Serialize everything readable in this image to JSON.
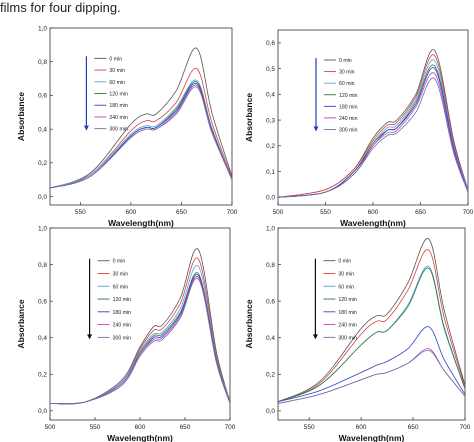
{
  "caption": "films for four dipping.",
  "legend_labels": [
    "0 min",
    "30 min",
    "60 min",
    "120 min",
    "180 min",
    "240 min",
    "300 min"
  ],
  "series_colors": [
    "#555555",
    "#d94040",
    "#5aa0e0",
    "#2a7a3a",
    "#3040c0",
    "#c040c0",
    "#7070a0"
  ],
  "chart_data": [
    {
      "type": "line",
      "xlabel": "Wavelength(nm)",
      "ylabel": "Absorbance",
      "xlim": [
        520,
        700
      ],
      "ylim": [
        -0.05,
        1.0
      ],
      "xticks": [
        550,
        600,
        650,
        700
      ],
      "yticks": [
        0.0,
        0.2,
        0.4,
        0.6,
        0.8,
        1.0
      ],
      "ytick_labels": [
        "0,0",
        "0,2",
        "0,4",
        "0,6",
        "0,8",
        "1,0"
      ],
      "arrow": "down",
      "x": [
        520,
        560,
        600,
        615,
        625,
        645,
        665,
        680,
        700
      ],
      "series": [
        {
          "name": "0 min",
          "values": [
            0.05,
            0.14,
            0.43,
            0.49,
            0.49,
            0.63,
            0.88,
            0.5,
            0.12
          ]
        },
        {
          "name": "30 min",
          "values": [
            0.05,
            0.13,
            0.39,
            0.45,
            0.45,
            0.56,
            0.76,
            0.44,
            0.11
          ]
        },
        {
          "name": "60 min",
          "values": [
            0.05,
            0.13,
            0.37,
            0.42,
            0.42,
            0.53,
            0.69,
            0.41,
            0.1
          ]
        },
        {
          "name": "120 min",
          "values": [
            0.05,
            0.12,
            0.36,
            0.41,
            0.41,
            0.52,
            0.68,
            0.4,
            0.1
          ]
        },
        {
          "name": "180 min",
          "values": [
            0.05,
            0.12,
            0.36,
            0.41,
            0.41,
            0.51,
            0.67,
            0.39,
            0.1
          ]
        },
        {
          "name": "240 min",
          "values": [
            0.05,
            0.12,
            0.35,
            0.4,
            0.4,
            0.5,
            0.66,
            0.39,
            0.1
          ]
        },
        {
          "name": "300 min",
          "values": [
            0.05,
            0.12,
            0.35,
            0.4,
            0.4,
            0.49,
            0.65,
            0.38,
            0.1
          ]
        }
      ]
    },
    {
      "type": "line",
      "xlabel": "Wavelength(nm)",
      "ylabel": "Absorbance",
      "xlim": [
        500,
        700
      ],
      "ylim": [
        -0.03,
        0.65
      ],
      "xticks": [
        500,
        550,
        600,
        650,
        700
      ],
      "yticks": [
        0.0,
        0.1,
        0.2,
        0.3,
        0.4,
        0.5,
        0.6
      ],
      "ytick_labels": [
        "0,0",
        "0,1",
        "0,2",
        "0,3",
        "0,4",
        "0,5",
        "0,6"
      ],
      "arrow": "down",
      "x": [
        500,
        550,
        580,
        600,
        615,
        625,
        645,
        665,
        685,
        700
      ],
      "series": [
        {
          "name": "0 min",
          "values": [
            0.0,
            0.03,
            0.11,
            0.23,
            0.29,
            0.3,
            0.4,
            0.57,
            0.22,
            0.03
          ]
        },
        {
          "name": "30 min",
          "values": [
            0.0,
            0.03,
            0.11,
            0.22,
            0.28,
            0.29,
            0.39,
            0.55,
            0.21,
            0.03
          ]
        },
        {
          "name": "60 min",
          "values": [
            0.0,
            0.02,
            0.1,
            0.21,
            0.27,
            0.28,
            0.38,
            0.53,
            0.2,
            0.03
          ]
        },
        {
          "name": "120 min",
          "values": [
            0.0,
            0.02,
            0.1,
            0.21,
            0.26,
            0.27,
            0.37,
            0.51,
            0.19,
            0.02
          ]
        },
        {
          "name": "180 min",
          "values": [
            0.0,
            0.02,
            0.1,
            0.2,
            0.26,
            0.27,
            0.36,
            0.5,
            0.19,
            0.02
          ]
        },
        {
          "name": "240 min",
          "values": [
            0.0,
            0.02,
            0.09,
            0.2,
            0.25,
            0.26,
            0.35,
            0.48,
            0.18,
            0.02
          ]
        },
        {
          "name": "300 min",
          "values": [
            0.0,
            0.02,
            0.09,
            0.19,
            0.24,
            0.25,
            0.33,
            0.46,
            0.17,
            0.02
          ]
        }
      ]
    },
    {
      "type": "line",
      "xlabel": "Wavelength(nm)",
      "ylabel": "Absorbance",
      "xlim": [
        500,
        700
      ],
      "ylim": [
        -0.05,
        1.0
      ],
      "xticks": [
        500,
        550,
        600,
        650,
        700
      ],
      "yticks": [
        0.0,
        0.2,
        0.4,
        0.6,
        0.8,
        1.0
      ],
      "ytick_labels": [
        "0,0",
        "0,2",
        "0,4",
        "0,6",
        "0,8",
        "1,0"
      ],
      "arrow": "down",
      "x": [
        500,
        540,
        580,
        600,
        615,
        625,
        645,
        665,
        685,
        700
      ],
      "series": [
        {
          "name": "0 min",
          "values": [
            0.04,
            0.05,
            0.17,
            0.35,
            0.46,
            0.47,
            0.62,
            0.88,
            0.32,
            0.05
          ]
        },
        {
          "name": "30 min",
          "values": [
            0.04,
            0.05,
            0.16,
            0.34,
            0.44,
            0.45,
            0.59,
            0.83,
            0.3,
            0.05
          ]
        },
        {
          "name": "60 min",
          "values": [
            0.04,
            0.05,
            0.16,
            0.33,
            0.42,
            0.43,
            0.56,
            0.79,
            0.29,
            0.05
          ]
        },
        {
          "name": "120 min",
          "values": [
            0.04,
            0.05,
            0.15,
            0.32,
            0.41,
            0.42,
            0.54,
            0.75,
            0.28,
            0.04
          ]
        },
        {
          "name": "180 min",
          "values": [
            0.04,
            0.05,
            0.15,
            0.31,
            0.4,
            0.41,
            0.53,
            0.74,
            0.27,
            0.04
          ]
        },
        {
          "name": "240 min",
          "values": [
            0.04,
            0.05,
            0.15,
            0.31,
            0.39,
            0.4,
            0.52,
            0.73,
            0.27,
            0.04
          ]
        },
        {
          "name": "300 min",
          "values": [
            0.04,
            0.05,
            0.14,
            0.3,
            0.38,
            0.39,
            0.51,
            0.72,
            0.26,
            0.04
          ]
        }
      ]
    },
    {
      "type": "line",
      "xlabel": "Wavelength(nm)",
      "ylabel": "Absorbance",
      "xlim": [
        520,
        700
      ],
      "ylim": [
        -0.05,
        1.0
      ],
      "xticks": [
        550,
        600,
        650,
        700
      ],
      "yticks": [
        0.0,
        0.2,
        0.4,
        0.6,
        0.8,
        1.0
      ],
      "ytick_labels": [
        "0,0",
        "0,2",
        "0,4",
        "0,6",
        "0,8",
        "1,0"
      ],
      "arrow": "down",
      "x": [
        520,
        560,
        600,
        615,
        625,
        645,
        665,
        680,
        700
      ],
      "series": [
        {
          "name": "0 min",
          "values": [
            0.05,
            0.16,
            0.45,
            0.52,
            0.53,
            0.7,
            0.94,
            0.55,
            0.14
          ]
        },
        {
          "name": "30 min",
          "values": [
            0.05,
            0.15,
            0.42,
            0.49,
            0.5,
            0.66,
            0.88,
            0.51,
            0.13
          ]
        },
        {
          "name": "60 min",
          "values": [
            0.05,
            0.14,
            0.36,
            0.43,
            0.44,
            0.58,
            0.79,
            0.46,
            0.12
          ]
        },
        {
          "name": "120 min",
          "values": [
            0.05,
            0.14,
            0.36,
            0.43,
            0.44,
            0.57,
            0.78,
            0.45,
            0.12
          ]
        },
        {
          "name": "180 min",
          "values": [
            0.05,
            0.11,
            0.21,
            0.25,
            0.27,
            0.34,
            0.46,
            0.28,
            0.09
          ]
        },
        {
          "name": "240 min",
          "values": [
            0.04,
            0.09,
            0.17,
            0.2,
            0.21,
            0.26,
            0.34,
            0.22,
            0.08
          ]
        },
        {
          "name": "300 min",
          "values": [
            0.04,
            0.09,
            0.17,
            0.2,
            0.21,
            0.26,
            0.33,
            0.22,
            0.08
          ]
        }
      ]
    }
  ]
}
